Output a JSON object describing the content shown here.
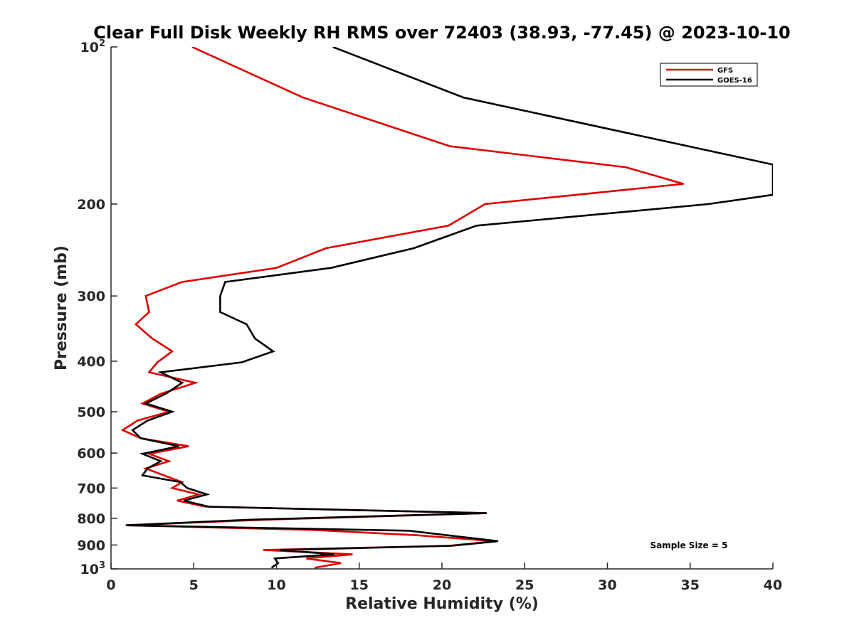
{
  "chart_data": {
    "type": "line",
    "title": "Clear Full Disk Weekly RH RMS over 72403 (38.93, -77.45) @ 2023-10-10",
    "xlabel": "Relative Humidity (%)",
    "ylabel": "Pressure (mb)",
    "xlim": [
      0,
      40
    ],
    "ylim": [
      100,
      1000
    ],
    "y_scale": "log",
    "y_reversed": true,
    "x_ticks": [
      0,
      5,
      10,
      15,
      20,
      25,
      30,
      35,
      40
    ],
    "y_ticks": [
      {
        "value": 100,
        "label": "10",
        "exponent": "2"
      },
      {
        "value": 200,
        "label": "200"
      },
      {
        "value": 300,
        "label": "300"
      },
      {
        "value": 400,
        "label": "400"
      },
      {
        "value": 500,
        "label": "500"
      },
      {
        "value": 600,
        "label": "600"
      },
      {
        "value": 700,
        "label": "700"
      },
      {
        "value": 800,
        "label": "800"
      },
      {
        "value": 900,
        "label": "900"
      },
      {
        "value": 1000,
        "label": "10",
        "exponent": "3"
      }
    ],
    "grid": false,
    "legend_position": "top-right",
    "series": [
      {
        "name": "GFS",
        "color": "#e00000",
        "points": [
          [
            4.9,
            100
          ],
          [
            11.6,
            125
          ],
          [
            20.5,
            155
          ],
          [
            31.1,
            170
          ],
          [
            34.6,
            183
          ],
          [
            22.6,
            200
          ],
          [
            20.4,
            220
          ],
          [
            13.0,
            243
          ],
          [
            10.0,
            265
          ],
          [
            4.3,
            282
          ],
          [
            2.1,
            300
          ],
          [
            2.3,
            322
          ],
          [
            1.5,
            340
          ],
          [
            2.5,
            362
          ],
          [
            3.7,
            383
          ],
          [
            2.8,
            402
          ],
          [
            2.3,
            420
          ],
          [
            5.1,
            440
          ],
          [
            3.0,
            462
          ],
          [
            1.9,
            482
          ],
          [
            3.5,
            500
          ],
          [
            1.6,
            520
          ],
          [
            0.7,
            542
          ],
          [
            1.8,
            562
          ],
          [
            4.7,
            582
          ],
          [
            2.3,
            602
          ],
          [
            3.5,
            622
          ],
          [
            2.1,
            642
          ],
          [
            3.2,
            662
          ],
          [
            4.3,
            682
          ],
          [
            3.7,
            700
          ],
          [
            5.3,
            720
          ],
          [
            4.0,
            740
          ],
          [
            5.7,
            760
          ],
          [
            22.7,
            782
          ],
          [
            9.2,
            805
          ],
          [
            0.9,
            825
          ],
          [
            12.2,
            842
          ],
          [
            18.5,
            862
          ],
          [
            23.2,
            885
          ],
          [
            20.4,
            903
          ],
          [
            9.2,
            920
          ],
          [
            14.6,
            938
          ],
          [
            11.8,
            955
          ],
          [
            13.9,
            975
          ],
          [
            12.3,
            995
          ]
        ]
      },
      {
        "name": "GOES-16",
        "color": "#000000",
        "points": [
          [
            13.4,
            100
          ],
          [
            21.3,
            125
          ],
          [
            40.0,
            168
          ],
          [
            40.0,
            192
          ],
          [
            36.1,
            200
          ],
          [
            22.1,
            220
          ],
          [
            18.3,
            243
          ],
          [
            13.3,
            265
          ],
          [
            6.9,
            282
          ],
          [
            6.6,
            300
          ],
          [
            6.6,
            322
          ],
          [
            8.2,
            340
          ],
          [
            8.7,
            362
          ],
          [
            9.8,
            383
          ],
          [
            7.9,
            402
          ],
          [
            3.0,
            420
          ],
          [
            4.3,
            440
          ],
          [
            3.3,
            462
          ],
          [
            2.1,
            482
          ],
          [
            3.7,
            500
          ],
          [
            2.2,
            520
          ],
          [
            1.3,
            542
          ],
          [
            1.8,
            562
          ],
          [
            4.1,
            582
          ],
          [
            1.9,
            602
          ],
          [
            3.0,
            622
          ],
          [
            2.2,
            642
          ],
          [
            1.9,
            662
          ],
          [
            4.2,
            682
          ],
          [
            4.6,
            700
          ],
          [
            5.8,
            720
          ],
          [
            4.4,
            740
          ],
          [
            5.9,
            760
          ],
          [
            22.7,
            782
          ],
          [
            8.3,
            805
          ],
          [
            0.9,
            825
          ],
          [
            18.0,
            845
          ],
          [
            23.4,
            885
          ],
          [
            20.6,
            903
          ],
          [
            10.2,
            920
          ],
          [
            13.5,
            938
          ],
          [
            9.9,
            955
          ],
          [
            10.1,
            975
          ],
          [
            9.7,
            995
          ]
        ]
      }
    ],
    "annotation": "Sample Size = 5"
  }
}
